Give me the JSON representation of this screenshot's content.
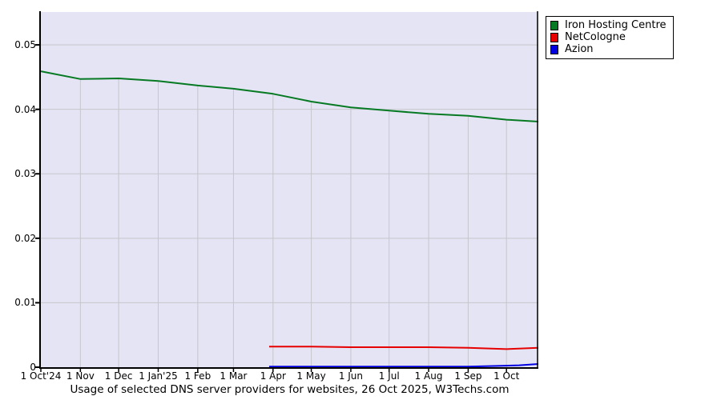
{
  "chart_data": {
    "type": "line",
    "title": "Usage of selected DNS server providers for websites, 26 Oct 2025, W3Techs.com",
    "legend_position": "top-right",
    "axes": {
      "ylim": [
        0,
        0.0551
      ],
      "x_total_days": 390,
      "grid": true
    },
    "colors": {
      "plot_bg": "#e4e4f4",
      "grid": "#c6c6cc",
      "axis": "#000000"
    },
    "y_ticks": [
      {
        "value": 0,
        "label": "0"
      },
      {
        "value": 0.01,
        "label": "0.01"
      },
      {
        "value": 0.02,
        "label": "0.02"
      },
      {
        "value": 0.03,
        "label": "0.03"
      },
      {
        "value": 0.04,
        "label": "0.04"
      },
      {
        "value": 0.05,
        "label": "0.05"
      }
    ],
    "x_ticks": [
      {
        "day": 0,
        "label": "1 Oct'24"
      },
      {
        "day": 31,
        "label": "1 Nov"
      },
      {
        "day": 61,
        "label": "1 Dec"
      },
      {
        "day": 92,
        "label": "1 Jan'25"
      },
      {
        "day": 123,
        "label": "1 Feb"
      },
      {
        "day": 151,
        "label": "1 Mar"
      },
      {
        "day": 182,
        "label": "1 Apr"
      },
      {
        "day": 212,
        "label": "1 May"
      },
      {
        "day": 243,
        "label": "1 Jun"
      },
      {
        "day": 273,
        "label": "1 Jul"
      },
      {
        "day": 304,
        "label": "1 Aug"
      },
      {
        "day": 335,
        "label": "1 Sep"
      },
      {
        "day": 365,
        "label": "1 Oct"
      }
    ],
    "series": [
      {
        "name": "Iron Hosting Centre",
        "color": "#067a22",
        "points": [
          [
            0,
            0.0459
          ],
          [
            31,
            0.0447
          ],
          [
            61,
            0.0448
          ],
          [
            92,
            0.0444
          ],
          [
            123,
            0.0437
          ],
          [
            151,
            0.0432
          ],
          [
            182,
            0.0424
          ],
          [
            212,
            0.0412
          ],
          [
            243,
            0.0403
          ],
          [
            273,
            0.0398
          ],
          [
            304,
            0.0393
          ],
          [
            335,
            0.039
          ],
          [
            365,
            0.0384
          ],
          [
            390,
            0.0381
          ]
        ]
      },
      {
        "name": "NetCologne",
        "color": "#e60000",
        "points": [
          [
            179,
            0.0032
          ],
          [
            212,
            0.0032
          ],
          [
            243,
            0.0031
          ],
          [
            273,
            0.0031
          ],
          [
            304,
            0.0031
          ],
          [
            335,
            0.003
          ],
          [
            365,
            0.0028
          ],
          [
            390,
            0.003
          ]
        ]
      },
      {
        "name": "Azion",
        "color": "#0000e0",
        "points": [
          [
            179,
            0.0001
          ],
          [
            304,
            0.0001
          ],
          [
            335,
            0.0001
          ],
          [
            358,
            0.0002
          ],
          [
            375,
            0.0003
          ],
          [
            390,
            0.0005
          ]
        ]
      }
    ]
  }
}
